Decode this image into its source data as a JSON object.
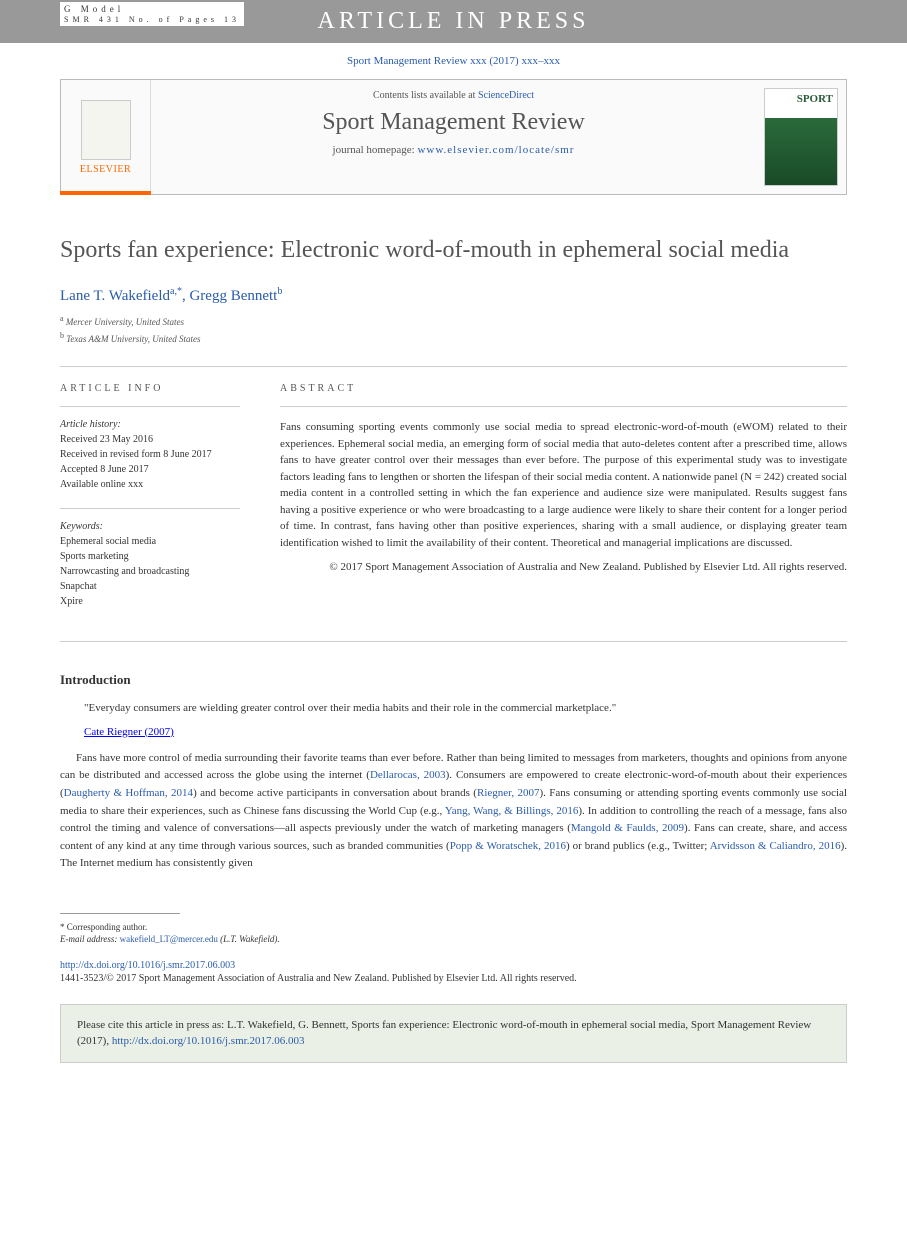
{
  "header": {
    "gmodel_label": "G Model",
    "gmodel_ref": "SMR 431 No. of Pages 13",
    "banner": "ARTICLE IN PRESS"
  },
  "journal_ref": "Sport Management Review xxx (2017) xxx–xxx",
  "journal_box": {
    "contents_prefix": "Contents lists available at ",
    "contents_link": "ScienceDirect",
    "journal_name": "Sport Management Review",
    "homepage_prefix": "journal homepage: ",
    "homepage_url": "www.elsevier.com/locate/smr",
    "elsevier_label": "ELSEVIER",
    "cover_title": "SPORT"
  },
  "article": {
    "title": "Sports fan experience: Electronic word-of-mouth in ephemeral social media",
    "authors": [
      {
        "name": "Lane T. Wakefield",
        "sup": "a,",
        "corr": "*"
      },
      {
        "name": "Gregg Bennett",
        "sup": "b",
        "corr": ""
      }
    ],
    "author_sep": ", ",
    "affiliations": [
      {
        "sup": "a",
        "text": "Mercer University, United States"
      },
      {
        "sup": "b",
        "text": "Texas A&M University, United States"
      }
    ]
  },
  "info": {
    "heading": "ARTICLE INFO",
    "history_label": "Article history:",
    "history": [
      "Received 23 May 2016",
      "Received in revised form 8 June 2017",
      "Accepted 8 June 2017",
      "Available online xxx"
    ],
    "keywords_label": "Keywords:",
    "keywords": [
      "Ephemeral social media",
      "Sports marketing",
      "Narrowcasting and broadcasting",
      "Snapchat",
      "Xpire"
    ]
  },
  "abstract": {
    "heading": "ABSTRACT",
    "text": "Fans consuming sporting events commonly use social media to spread electronic-word-of-mouth (eWOM) related to their experiences. Ephemeral social media, an emerging form of social media that auto-deletes content after a prescribed time, allows fans to have greater control over their messages than ever before. The purpose of this experimental study was to investigate factors leading fans to lengthen or shorten the lifespan of their social media content. A nationwide panel (N = 242) created social media content in a controlled setting in which the fan experience and audience size were manipulated. Results suggest fans having a positive experience or who were broadcasting to a large audience were likely to share their content for a longer period of time. In contrast, fans having other than positive experiences, sharing with a small audience, or displaying greater team identification wished to limit the availability of their content. Theoretical and managerial implications are discussed.",
    "copyright": "© 2017 Sport Management Association of Australia and New Zealand. Published by Elsevier Ltd. All rights reserved."
  },
  "intro": {
    "heading": "Introduction",
    "quote": "\"Everyday consumers are wielding greater control over their media habits and their role in the commercial marketplace.\"",
    "quote_attr": "Cate Riegner (2007)",
    "body_parts": [
      {
        "t": "Fans have more control of media surrounding their favorite teams than ever before. Rather than being limited to messages from marketers, thoughts and opinions from anyone can be distributed and accessed across the globe using the internet ("
      },
      {
        "link": "Dellarocas, 2003"
      },
      {
        "t": "). Consumers are empowered to create electronic-word-of-mouth about their experiences ("
      },
      {
        "link": "Daugherty & Hoffman, 2014"
      },
      {
        "t": ") and become active participants in conversation about brands ("
      },
      {
        "link": "Riegner, 2007"
      },
      {
        "t": "). Fans consuming or attending sporting events commonly use social media to share their experiences, such as Chinese fans discussing the World Cup (e.g., "
      },
      {
        "link": "Yang, Wang, & Billings, 2016"
      },
      {
        "t": "). In addition to controlling the reach of a message, fans also control the timing and valence of conversations—all aspects previously under the watch of marketing managers ("
      },
      {
        "link": "Mangold & Faulds, 2009"
      },
      {
        "t": "). Fans can create, share, and access content of any kind at any time through various sources, such as branded communities ("
      },
      {
        "link": "Popp & Woratschek, 2016"
      },
      {
        "t": ") or brand publics (e.g., Twitter; "
      },
      {
        "link": "Arvidsson & Caliandro, 2016"
      },
      {
        "t": "). The Internet medium has consistently given"
      }
    ]
  },
  "footer": {
    "corr_label": "* Corresponding author.",
    "email_label": "E-mail address: ",
    "email": "wakefield_LT@mercer.edu",
    "email_suffix": " (L.T.  Wakefield).",
    "doi": "http://dx.doi.org/10.1016/j.smr.2017.06.003",
    "issn": "1441-3523/© 2017 Sport Management Association of Australia and New Zealand. Published by Elsevier Ltd. All rights reserved."
  },
  "cite_box": {
    "prefix": "Please cite this article in press as: L.T. Wakefield, G. Bennett, Sports fan experience: Electronic word-of-mouth in ephemeral social media, Sport Management Review (2017), ",
    "link": "http://dx.doi.org/10.1016/j.smr.2017.06.003"
  },
  "colors": {
    "link": "#2a5caa",
    "orange": "#ff6600",
    "banner_bg": "#999999",
    "cite_bg": "#eaf0e6"
  }
}
